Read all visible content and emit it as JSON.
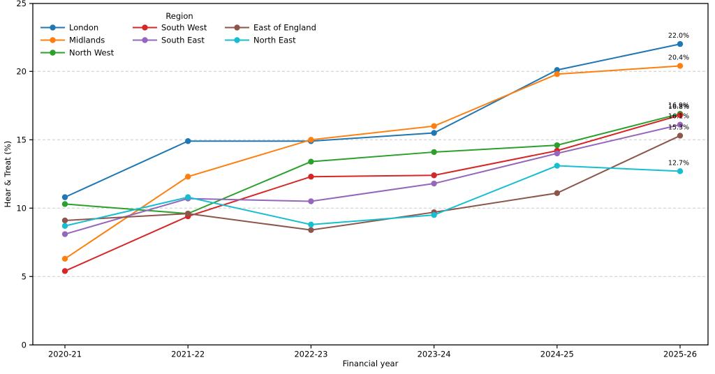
{
  "chart_data": {
    "type": "line",
    "xlabel": "Financial year",
    "ylabel": "Hear & Treat (%)",
    "categories": [
      "2020-21",
      "2021-22",
      "2022-23",
      "2023-24",
      "2024-25",
      "2025-26"
    ],
    "ylim": [
      0,
      25
    ],
    "yticks": [
      0,
      5,
      10,
      15,
      20,
      25
    ],
    "grid": "horizontal-dashed",
    "grid_color": "#cccccc",
    "axis_color": "#000000",
    "legend": {
      "title": "Region",
      "position": "upper-left",
      "ncol": 3,
      "rows_per_col": [
        3,
        2,
        2
      ]
    },
    "series": [
      {
        "name": "London",
        "color": "#1f77b4",
        "values": [
          10.8,
          14.9,
          14.9,
          15.5,
          20.1,
          22.0
        ],
        "end_label": "22.0%"
      },
      {
        "name": "Midlands",
        "color": "#ff7f0e",
        "values": [
          6.3,
          12.3,
          15.0,
          16.0,
          19.8,
          20.4
        ],
        "end_label": "20.4%"
      },
      {
        "name": "North West",
        "color": "#2ca02c",
        "values": [
          10.3,
          9.6,
          13.4,
          14.1,
          14.6,
          16.9
        ],
        "end_label": "16.9%"
      },
      {
        "name": "South West",
        "color": "#d62728",
        "values": [
          5.4,
          9.4,
          12.3,
          12.4,
          14.2,
          16.8
        ],
        "end_label": "16.8%"
      },
      {
        "name": "South East",
        "color": "#9467bd",
        "values": [
          8.1,
          10.7,
          10.5,
          11.8,
          14.0,
          16.1
        ],
        "end_label": "16.1%"
      },
      {
        "name": "East of England",
        "color": "#8c564b",
        "values": [
          9.1,
          9.6,
          8.4,
          9.7,
          11.1,
          15.3
        ],
        "end_label": "15.3%"
      },
      {
        "name": "North East",
        "color": "#17becf",
        "values": [
          8.7,
          10.8,
          8.8,
          9.5,
          13.1,
          12.7
        ],
        "end_label": "12.7%"
      }
    ]
  }
}
